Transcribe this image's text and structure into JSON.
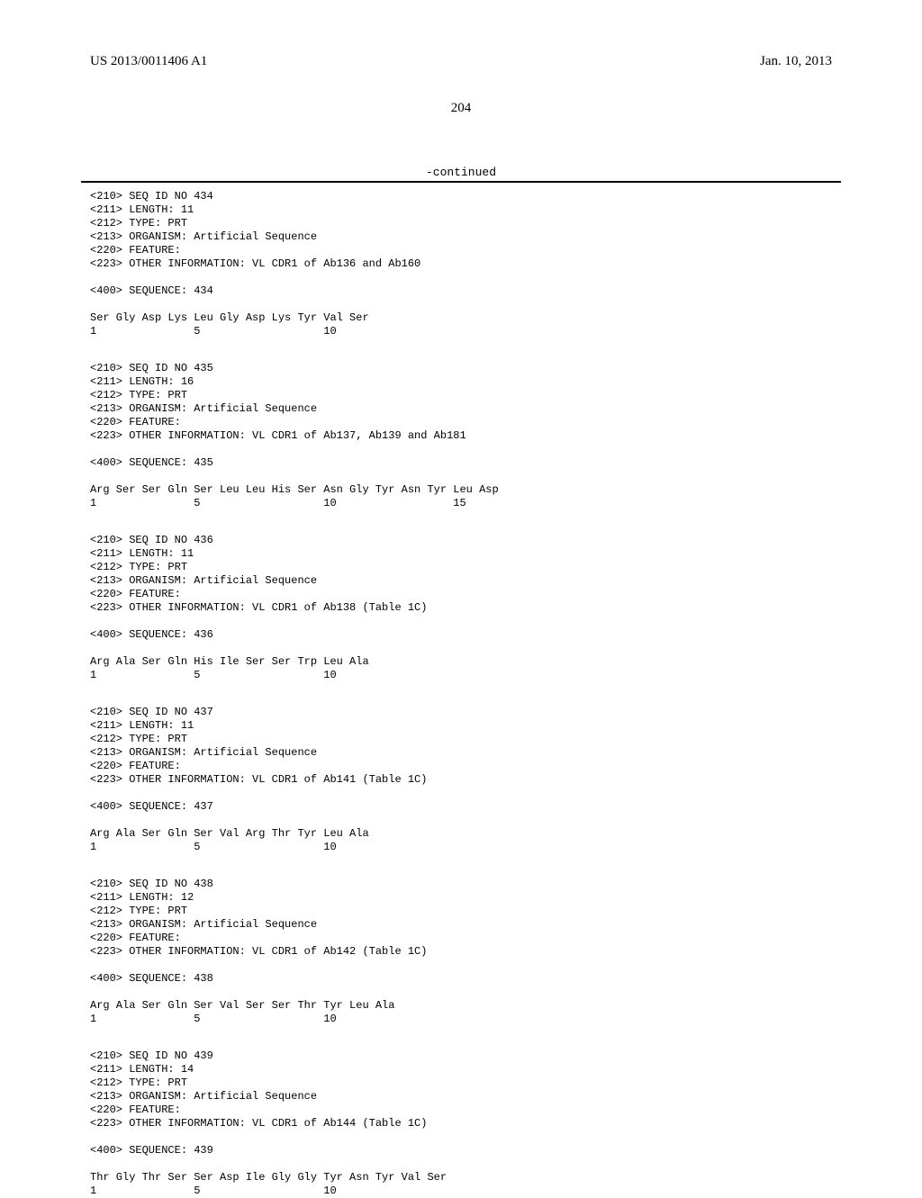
{
  "header": {
    "pub_number": "US 2013/0011406 A1",
    "pub_date": "Jan. 10, 2013"
  },
  "page_number": "204",
  "continued_label": "-continued",
  "sequences": [
    {
      "id": "434",
      "length": "11",
      "type": "PRT",
      "organism": "Artificial Sequence",
      "feature": "",
      "other_info": "VL CDR1 of Ab136 and Ab160",
      "seq_num": "434",
      "residues": "Ser Gly Asp Lys Leu Gly Asp Lys Tyr Val Ser",
      "positions": "1               5                   10"
    },
    {
      "id": "435",
      "length": "16",
      "type": "PRT",
      "organism": "Artificial Sequence",
      "feature": "",
      "other_info": "VL CDR1 of Ab137, Ab139 and Ab181",
      "seq_num": "435",
      "residues": "Arg Ser Ser Gln Ser Leu Leu His Ser Asn Gly Tyr Asn Tyr Leu Asp",
      "positions": "1               5                   10                  15"
    },
    {
      "id": "436",
      "length": "11",
      "type": "PRT",
      "organism": "Artificial Sequence",
      "feature": "",
      "other_info": "VL CDR1 of Ab138 (Table 1C)",
      "seq_num": "436",
      "residues": "Arg Ala Ser Gln His Ile Ser Ser Trp Leu Ala",
      "positions": "1               5                   10"
    },
    {
      "id": "437",
      "length": "11",
      "type": "PRT",
      "organism": "Artificial Sequence",
      "feature": "",
      "other_info": "VL CDR1 of Ab141 (Table 1C)",
      "seq_num": "437",
      "residues": "Arg Ala Ser Gln Ser Val Arg Thr Tyr Leu Ala",
      "positions": "1               5                   10"
    },
    {
      "id": "438",
      "length": "12",
      "type": "PRT",
      "organism": "Artificial Sequence",
      "feature": "",
      "other_info": "VL CDR1 of Ab142 (Table 1C)",
      "seq_num": "438",
      "residues": "Arg Ala Ser Gln Ser Val Ser Ser Thr Tyr Leu Ala",
      "positions": "1               5                   10"
    },
    {
      "id": "439",
      "length": "14",
      "type": "PRT",
      "organism": "Artificial Sequence",
      "feature": "",
      "other_info": "VL CDR1 of Ab144 (Table 1C)",
      "seq_num": "439",
      "residues": "Thr Gly Thr Ser Ser Asp Ile Gly Gly Tyr Asn Tyr Val Ser",
      "positions": "1               5                   10"
    }
  ],
  "labels": {
    "seq_id_prefix": "<210> SEQ ID NO ",
    "length_prefix": "<211> LENGTH: ",
    "type_prefix": "<212> TYPE: ",
    "organism_prefix": "<213> ORGANISM: ",
    "feature_prefix": "<220> FEATURE:",
    "other_info_prefix": "<223> OTHER INFORMATION: ",
    "sequence_prefix": "<400> SEQUENCE: "
  }
}
